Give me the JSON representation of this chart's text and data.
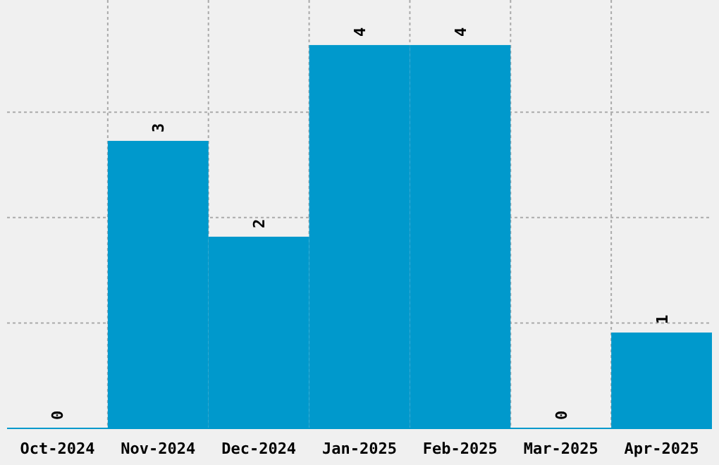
{
  "chart_data": {
    "type": "bar",
    "categories": [
      "Oct-2024",
      "Nov-2024",
      "Dec-2024",
      "Jan-2025",
      "Feb-2025",
      "Mar-2025",
      "Apr-2025"
    ],
    "values": [
      0,
      3,
      2,
      4,
      4,
      0,
      1
    ],
    "color": "#0099cc",
    "data_labels": true,
    "grid": true,
    "tick_labels": "x",
    "ylim": [
      0,
      4.47
    ],
    "yticks": [
      {
        "value": 1.1,
        "label": null
      },
      {
        "value": 2.2,
        "label": null
      },
      {
        "value": 3.3,
        "label": null
      }
    ]
  }
}
